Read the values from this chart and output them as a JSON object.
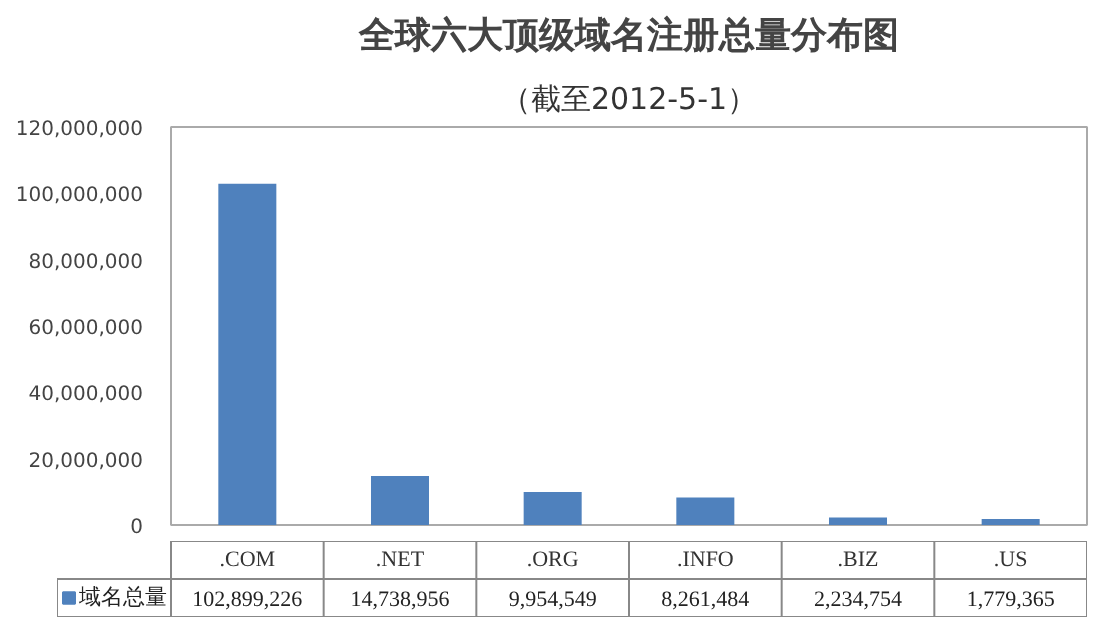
{
  "chart_data": {
    "type": "bar",
    "title": "全球六大顶级域名注册总量分布图",
    "subtitle": "（截至2012-5-1）",
    "categories": [
      ".COM",
      ".NET",
      ".ORG",
      ".INFO",
      ".BIZ",
      ".US"
    ],
    "series": [
      {
        "name": "域名总量",
        "color": "#4f81bd",
        "values": [
          102899226,
          14738956,
          9954549,
          8261484,
          2234754,
          1779365
        ],
        "value_labels": [
          "102,899,226",
          "14,738,956",
          "9,954,549",
          "8,261,484",
          "2,234,754",
          "1,779,365"
        ]
      }
    ],
    "ylim": [
      0,
      120000000
    ],
    "yticks": [
      0,
      {
        "value": 20000000,
        "label": "20,000,000"
      },
      {
        "value": 40000000,
        "label": "40,000,000"
      },
      {
        "value": 60000000,
        "label": "60,000,000"
      },
      {
        "value": 80000000,
        "label": "80,000,000"
      },
      {
        "value": 100000000,
        "label": "100,000,000"
      },
      {
        "value": 120000000,
        "label": "120,000,000"
      }
    ],
    "grid": false,
    "legend": "bottom"
  }
}
